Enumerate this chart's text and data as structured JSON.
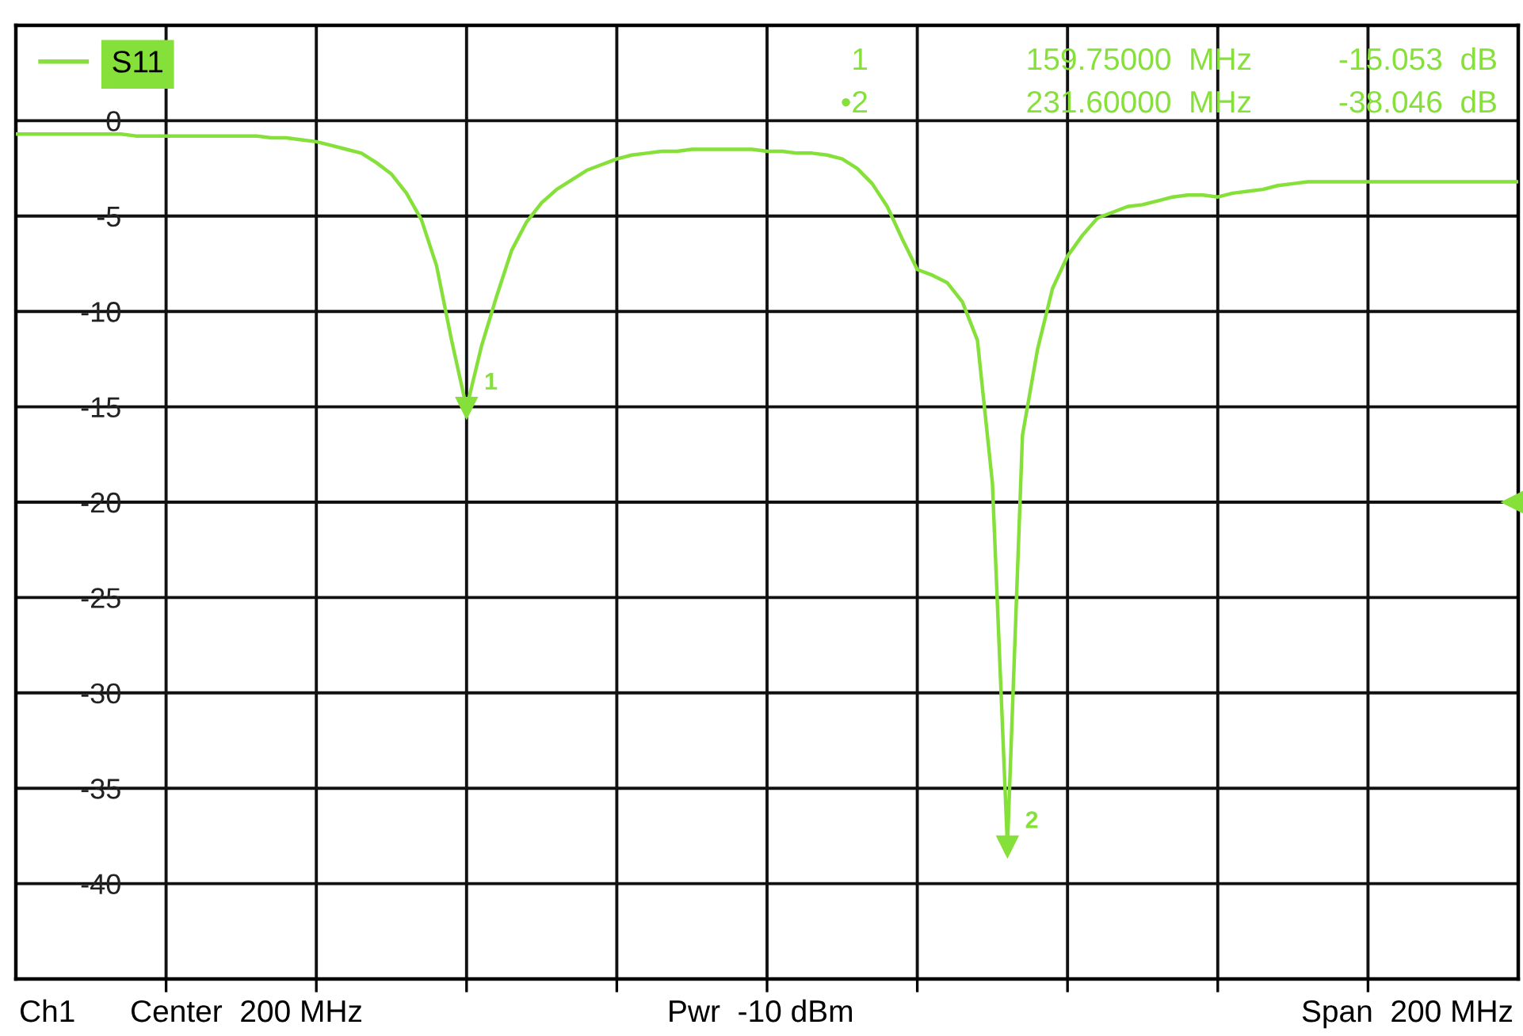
{
  "chart_data": {
    "type": "line",
    "categories": [
      null,
      null,
      null,
      null,
      null,
      null,
      null,
      null,
      null,
      null,
      null,
      null,
      null,
      null,
      null,
      null,
      null,
      null,
      null,
      null,
      null,
      null,
      null,
      null,
      null,
      null,
      null,
      null,
      null,
      null,
      null,
      null,
      null,
      null,
      null,
      null,
      null,
      null,
      null,
      null,
      null,
      null,
      null,
      null,
      null,
      null,
      null,
      null,
      null,
      null,
      null,
      null,
      null,
      null,
      null,
      null,
      null,
      null,
      null,
      null,
      null,
      null,
      null,
      null,
      null,
      null,
      null,
      null,
      null,
      null,
      null,
      null,
      null,
      null,
      null,
      null,
      null,
      null,
      null,
      null,
      null,
      null,
      null,
      null,
      null,
      null,
      null,
      null,
      null,
      null,
      null,
      null,
      null,
      null,
      null,
      null,
      null,
      null,
      null,
      null,
      null
    ],
    "ylim": [
      -45,
      5
    ],
    "yticks": [
      0,
      -5,
      -10,
      -15,
      -20,
      -25,
      -30,
      -35,
      -40
    ],
    "tick_labels": "y",
    "grid": true,
    "legend": "top left",
    "marker": "none",
    "line_style": "solid",
    "series": [
      {
        "name": "S11",
        "color": "#86e03a",
        "values": [
          -0.7,
          -0.7,
          -0.7,
          -0.7,
          -0.7,
          -0.7,
          -0.7,
          -0.7,
          -0.8,
          -0.8,
          -0.8,
          -0.8,
          -0.8,
          -0.8,
          -0.8,
          -0.8,
          -0.8,
          -0.9,
          -0.9,
          -1.0,
          -1.1,
          -1.3,
          -1.5,
          -1.7,
          -2.2,
          -2.8,
          -3.8,
          -5.2,
          -7.6,
          -11.5,
          -15.053,
          -11.8,
          -9.2,
          -6.8,
          -5.3,
          -4.3,
          -3.6,
          -3.1,
          -2.6,
          -2.3,
          -2.0,
          -1.8,
          -1.7,
          -1.6,
          -1.6,
          -1.5,
          -1.5,
          -1.5,
          -1.5,
          -1.5,
          -1.6,
          -1.6,
          -1.7,
          -1.7,
          -1.8,
          -2.0,
          -2.5,
          -3.3,
          -4.5,
          -6.2,
          -7.8,
          -8.1,
          -8.5,
          -9.5,
          -11.5,
          -19,
          -38.046,
          -16.5,
          -12,
          -8.8,
          -7.1,
          -6,
          -5.1,
          -4.8,
          -4.5,
          -4.4,
          -4.2,
          -4.0,
          -3.9,
          -3.9,
          -4.0,
          -3.8,
          -3.7,
          -3.6,
          -3.4,
          -3.3,
          -3.2,
          -3.2,
          -3.2,
          -3.2,
          -3.2,
          -3.2,
          -3.2,
          -3.2,
          -3.2,
          -3.2,
          -3.2,
          -3.2,
          -3.2,
          -3.2,
          -3.2
        ]
      }
    ],
    "annotations": [
      "Ch1",
      "Center  200 MHz",
      "Pwr  -10 dBm",
      "Span  200 MHz",
      "1",
      "159.75000  MHz",
      "-15.053  dB",
      "•2",
      "231.60000  MHz",
      "-38.046  dB",
      "1",
      "2"
    ]
  }
}
